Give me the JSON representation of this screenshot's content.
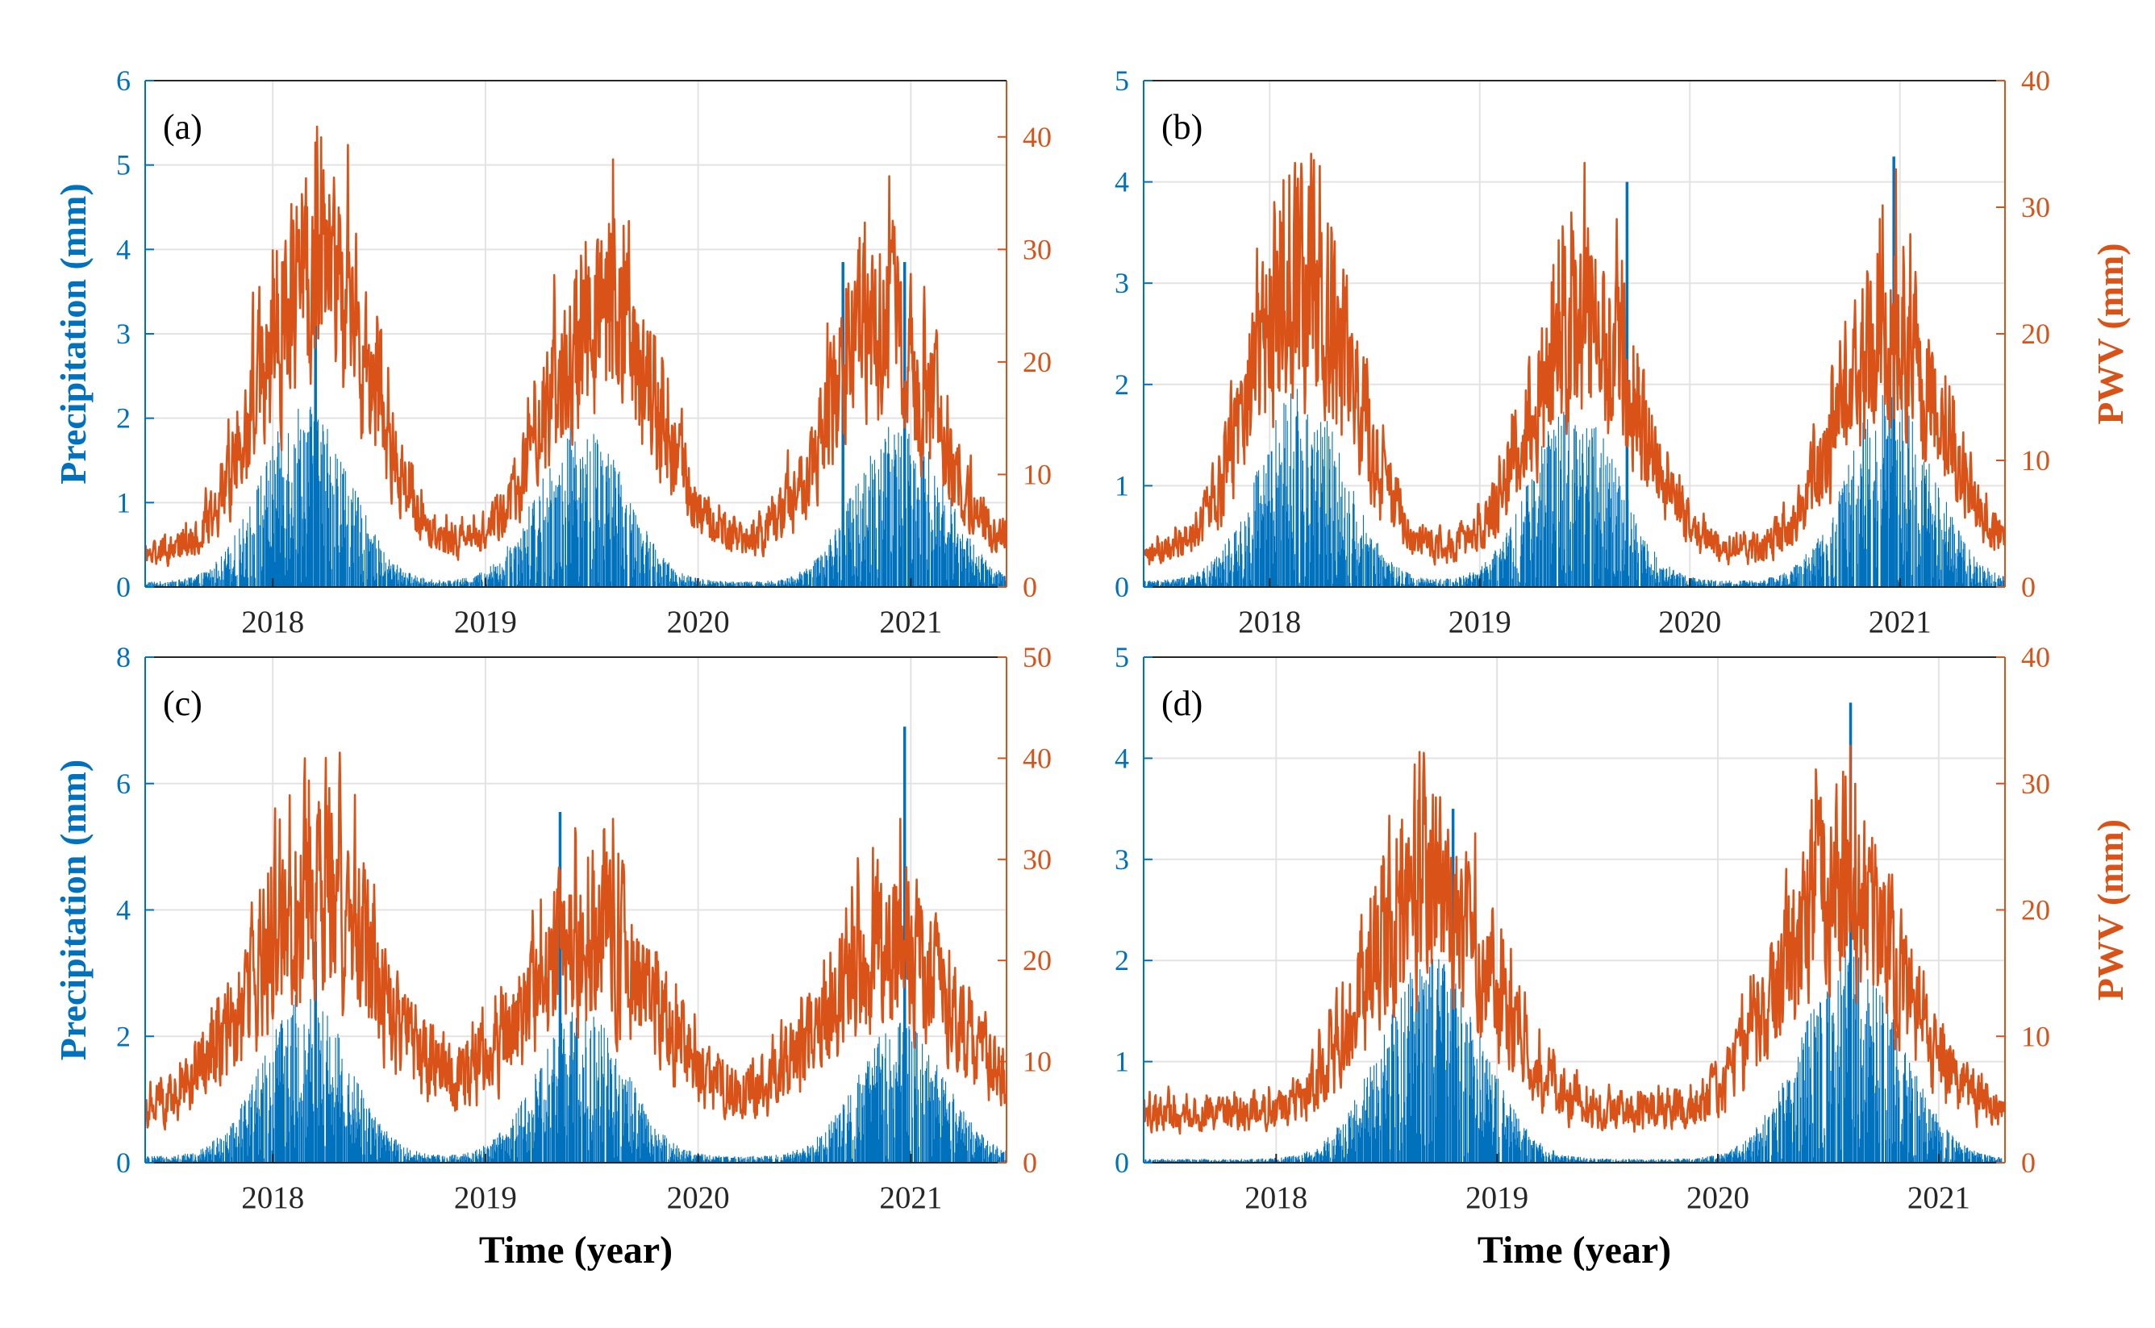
{
  "colors": {
    "precipitation": "#0072BD",
    "pwv": "#D95319",
    "grid": "#E3E3E3",
    "axis": "#262626"
  },
  "chart_data": [
    {
      "type": "bar",
      "panel_label": "(a)",
      "title": "",
      "xlabel": "",
      "ylabel_left": "Precipitation (mm)",
      "ylabel_right": "",
      "x_range": [
        2017.4,
        2021.45
      ],
      "x_ticks": [
        2018,
        2019,
        2020,
        2021
      ],
      "x_tick_labels": [
        "2018",
        "2019",
        "2020",
        "2021"
      ],
      "ylim_left": [
        0,
        6
      ],
      "left_ticks": [
        0,
        1,
        2,
        3,
        4,
        5,
        6
      ],
      "left_tick_labels": [
        "0",
        "1",
        "2",
        "3",
        "4",
        "5",
        "6"
      ],
      "ylim_right": [
        0,
        45
      ],
      "right_ticks": [
        0,
        10,
        20,
        30,
        40
      ],
      "right_tick_labels": [
        "0",
        "10",
        "20",
        "30",
        "40"
      ],
      "series": [
        {
          "name": "Precipitation",
          "axis": "left",
          "style": "bar",
          "profile": {
            "peaks": [
              2018.15,
              2019.45,
              2020.95
            ],
            "peak_values": [
              1.8,
              1.6,
              1.7
            ],
            "width": 0.2,
            "base": 0.05
          },
          "highlights": [
            {
              "x": 2018.2,
              "value": 3.1
            },
            {
              "x": 2020.68,
              "value": 3.85
            },
            {
              "x": 2020.97,
              "value": 3.85
            }
          ]
        },
        {
          "name": "PWV",
          "axis": "right",
          "style": "line",
          "profile": {
            "peaks": [
              2018.2,
              2019.55,
              2020.85
            ],
            "peak_values": [
              30,
              26,
              24
            ],
            "width": 0.25,
            "base": 3
          },
          "highlights": [
            {
              "x": 2018.2,
              "value": 39.5
            },
            {
              "x": 2019.6,
              "value": 38
            },
            {
              "x": 2020.9,
              "value": 36.5
            }
          ]
        }
      ]
    },
    {
      "type": "bar",
      "panel_label": "(b)",
      "title": "",
      "xlabel": "",
      "ylabel_left": "",
      "ylabel_right": "PWV (mm)",
      "x_range": [
        2017.4,
        2021.5
      ],
      "x_ticks": [
        2018,
        2019,
        2020,
        2021
      ],
      "x_tick_labels": [
        "2018",
        "2019",
        "2020",
        "2021"
      ],
      "ylim_left": [
        0,
        5
      ],
      "left_ticks": [
        0,
        1,
        2,
        3,
        4,
        5
      ],
      "left_tick_labels": [
        "0",
        "1",
        "2",
        "3",
        "4",
        "5"
      ],
      "ylim_right": [
        0,
        40
      ],
      "right_ticks": [
        0,
        10,
        20,
        30,
        40
      ],
      "right_tick_labels": [
        "0",
        "10",
        "20",
        "30",
        "40"
      ],
      "series": [
        {
          "name": "Precipitation",
          "axis": "left",
          "style": "bar",
          "profile": {
            "peaks": [
              2018.15,
              2019.45,
              2020.95
            ],
            "peak_values": [
              1.6,
              1.5,
              1.6
            ],
            "width": 0.2,
            "base": 0.05
          },
          "highlights": [
            {
              "x": 2019.7,
              "value": 4.0
            },
            {
              "x": 2020.97,
              "value": 4.25
            }
          ]
        },
        {
          "name": "PWV",
          "axis": "right",
          "style": "line",
          "profile": {
            "peaks": [
              2018.15,
              2019.5,
              2020.95
            ],
            "peak_values": [
              25,
              23,
              21
            ],
            "width": 0.24,
            "base": 2.5
          },
          "highlights": [
            {
              "x": 2018.12,
              "value": 33.5
            },
            {
              "x": 2019.5,
              "value": 33.5
            },
            {
              "x": 2020.98,
              "value": 33
            }
          ]
        }
      ]
    },
    {
      "type": "bar",
      "panel_label": "(c)",
      "title": "",
      "xlabel": "Time (year)",
      "ylabel_left": "Precipitation (mm)",
      "ylabel_right": "",
      "x_range": [
        2017.4,
        2021.45
      ],
      "x_ticks": [
        2018,
        2019,
        2020,
        2021
      ],
      "x_tick_labels": [
        "2018",
        "2019",
        "2020",
        "2021"
      ],
      "ylim_left": [
        0,
        8
      ],
      "left_ticks": [
        0,
        2,
        4,
        6,
        8
      ],
      "left_tick_labels": [
        "0",
        "2",
        "4",
        "6",
        "8"
      ],
      "ylim_right": [
        0,
        50
      ],
      "right_ticks": [
        0,
        10,
        20,
        30,
        40,
        50
      ],
      "right_tick_labels": [
        "0",
        "10",
        "20",
        "30",
        "40",
        "50"
      ],
      "series": [
        {
          "name": "Precipitation",
          "axis": "left",
          "style": "bar",
          "profile": {
            "peaks": [
              2018.15,
              2019.45,
              2020.95
            ],
            "peak_values": [
              2.2,
              2.0,
              1.8
            ],
            "width": 0.2,
            "base": 0.08
          },
          "highlights": [
            {
              "x": 2018.2,
              "value": 3.5
            },
            {
              "x": 2019.35,
              "value": 5.55
            },
            {
              "x": 2020.97,
              "value": 6.9
            }
          ]
        },
        {
          "name": "PWV",
          "axis": "right",
          "style": "line",
          "profile": {
            "peaks": [
              2018.2,
              2019.5,
              2020.9
            ],
            "peak_values": [
              28,
              24,
              22
            ],
            "width": 0.3,
            "base": 5
          },
          "highlights": [
            {
              "x": 2018.15,
              "value": 40
            },
            {
              "x": 2019.6,
              "value": 34
            },
            {
              "x": 2020.95,
              "value": 34
            }
          ]
        }
      ]
    },
    {
      "type": "bar",
      "panel_label": "(d)",
      "title": "",
      "xlabel": "Time (year)",
      "ylabel_left": "",
      "ylabel_right": "PWV (mm)",
      "x_range": [
        2017.4,
        2021.3
      ],
      "x_ticks": [
        2018,
        2019,
        2020,
        2021
      ],
      "x_tick_labels": [
        "2018",
        "2019",
        "2020",
        "2021"
      ],
      "ylim_left": [
        0,
        5
      ],
      "left_ticks": [
        0,
        1,
        2,
        3,
        4,
        5
      ],
      "left_tick_labels": [
        "0",
        "1",
        "2",
        "3",
        "4",
        "5"
      ],
      "ylim_right": [
        0,
        40
      ],
      "right_ticks": [
        0,
        10,
        20,
        30,
        40
      ],
      "right_tick_labels": [
        "0",
        "10",
        "20",
        "30",
        "40"
      ],
      "series": [
        {
          "name": "Precipitation",
          "axis": "left",
          "style": "bar",
          "profile": {
            "peaks": [
              2018.7,
              2020.6
            ],
            "peak_values": [
              1.7,
              1.7
            ],
            "width": 0.22,
            "base": 0.03
          },
          "highlights": [
            {
              "x": 2018.8,
              "value": 3.5
            },
            {
              "x": 2020.6,
              "value": 4.55
            }
          ]
        },
        {
          "name": "PWV",
          "axis": "right",
          "style": "line",
          "profile": {
            "peaks": [
              2018.7,
              2020.55
            ],
            "peak_values": [
              22,
              23
            ],
            "width": 0.27,
            "base": 4
          },
          "highlights": [
            {
              "x": 2018.65,
              "value": 32.5
            },
            {
              "x": 2020.6,
              "value": 33
            }
          ]
        }
      ]
    }
  ]
}
